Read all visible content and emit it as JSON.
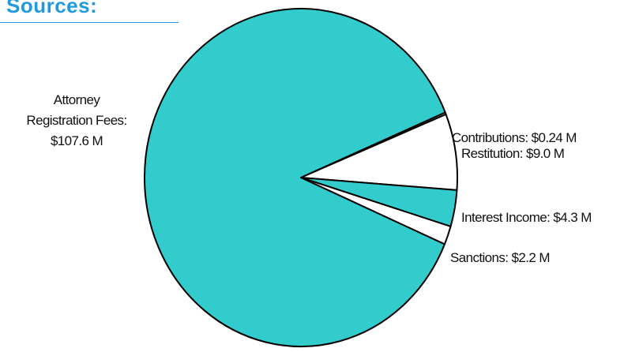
{
  "heading": "Sources:",
  "colors": {
    "heading": "#1f9ae0",
    "main_slice": "#33cccc",
    "other_slices": "#ffffff",
    "outline": "#000000"
  },
  "chart_data": {
    "type": "pie",
    "unit": "$ M",
    "slices": [
      {
        "label": "Contributions: $0.24 M",
        "value": 0.24,
        "color": "#ffffff"
      },
      {
        "label": "Restitution: $9.0 M",
        "value": 9.0,
        "color": "#ffffff"
      },
      {
        "label": "Interest Income: $4.3 M",
        "value": 4.3,
        "color": "#33cccc"
      },
      {
        "label": "Sanctions: $2.2 M",
        "value": 2.2,
        "color": "#ffffff"
      },
      {
        "label_lines": [
          "Attorney",
          "Registration Fees:",
          "$107.6 M"
        ],
        "value": 107.6,
        "color": "#33cccc"
      }
    ]
  }
}
